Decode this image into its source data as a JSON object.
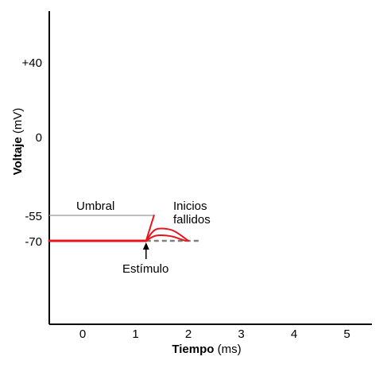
{
  "chart_data": {
    "type": "line",
    "title": "",
    "xlabel_bold": "Tiempo",
    "xlabel_unit": " (ms)",
    "ylabel_bold": "Voltaje",
    "ylabel_unit": " (mV)",
    "xlim": [
      -0.6,
      5.5
    ],
    "x_ticks": [
      0,
      1,
      2,
      3,
      4,
      5
    ],
    "x_tick_labels": [
      "0",
      "1",
      "2",
      "3",
      "4",
      "5"
    ],
    "y_ticks": [
      40,
      0,
      -55,
      -70
    ],
    "y_tick_labels": [
      "+40",
      "0",
      "-55",
      "-70"
    ],
    "grid": false,
    "colors": {
      "trace": "#e8141c",
      "threshold": "#aaaaaa",
      "dashed": "#808080",
      "axis": "#000000"
    },
    "resting_potential": -70,
    "threshold": -55,
    "threshold_line_x": [
      -0.6,
      1.35
    ],
    "stimulus_time": 1.2,
    "series": [
      {
        "role": "resting",
        "points": [
          [
            -0.6,
            -70
          ],
          [
            1.2,
            -70
          ]
        ]
      },
      {
        "role": "rising",
        "points": [
          [
            1.2,
            -70
          ],
          [
            1.35,
            -55
          ]
        ]
      },
      {
        "role": "failed-initiation",
        "points": [
          [
            1.2,
            -70
          ],
          [
            1.35,
            -63.2
          ],
          [
            1.5,
            -62.5
          ],
          [
            1.7,
            -63.5
          ],
          [
            1.85,
            -66.5
          ],
          [
            2.0,
            -70
          ]
        ]
      },
      {
        "role": "failed-initiation",
        "points": [
          [
            1.2,
            -70
          ],
          [
            1.35,
            -67
          ],
          [
            1.5,
            -66.6
          ],
          [
            1.7,
            -67.3
          ],
          [
            1.85,
            -69.0
          ],
          [
            1.95,
            -70
          ]
        ]
      }
    ],
    "dashed_baseline_x": [
      1.2,
      2.2
    ],
    "annotations": {
      "threshold_label": "Umbral",
      "failed_label_line1": "Inicios",
      "failed_label_line2": "fallidos",
      "stimulus_label": "Estímulo"
    }
  }
}
